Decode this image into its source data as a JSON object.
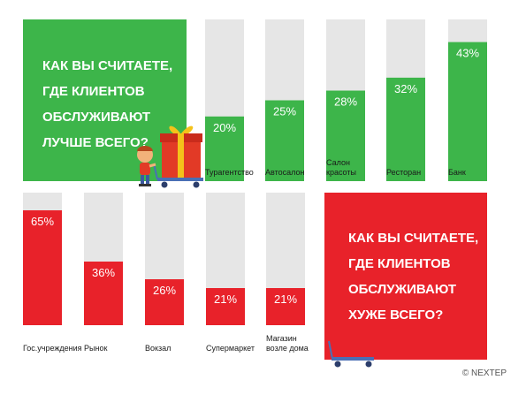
{
  "colors": {
    "best": "#3db54a",
    "worst": "#e8222a",
    "track": "#e6e6e6",
    "label": "#1a1a1a",
    "value_text": "#ffffff"
  },
  "best_panel": {
    "lines": [
      "КАК ВЫ СЧИТАЕТЕ,",
      "ГДЕ КЛИЕНТОВ",
      "ОБСЛУЖИВАЮТ",
      "ЛУЧШЕ ВСЕГО?"
    ]
  },
  "worst_panel": {
    "lines": [
      "КАК ВЫ СЧИТАЕТЕ,",
      "ГДЕ КЛИЕНТОВ",
      "ОБСЛУЖИВАЮТ",
      "ХУЖЕ ВСЕГО?"
    ]
  },
  "copyright": "© NEXTEP",
  "illustrations": {
    "top": "boy-pushing-gift-cart-icon",
    "bottom": "empty-cart-icon"
  },
  "chart_data": [
    {
      "type": "bar",
      "title": "КАК ВЫ СЧИТАЕТЕ, ГДЕ КЛИЕНТОВ ОБСЛУЖИВАЮТ ЛУЧШЕ ВСЕГО?",
      "categories": [
        "Турагентство",
        "Автосалон",
        "Салон красоты",
        "Ресторан",
        "Банк"
      ],
      "category_lines": [
        [
          "Турагентство"
        ],
        [
          "Автосалон"
        ],
        [
          "Салон",
          "красоты"
        ],
        [
          "Ресторан"
        ],
        [
          "Банк"
        ]
      ],
      "values": [
        20,
        25,
        28,
        32,
        43
      ],
      "value_labels": [
        "20%",
        "25%",
        "28%",
        "32%",
        "43%"
      ],
      "unit": "%",
      "ylim": [
        0,
        50
      ],
      "grid": false
    },
    {
      "type": "bar",
      "title": "КАК ВЫ СЧИТАЕТЕ, ГДЕ КЛИЕНТОВ ОБСЛУЖИВАЮТ ХУЖЕ ВСЕГО?",
      "categories": [
        "Гос.учреждения",
        "Рынок",
        "Вокзал",
        "Супермаркет",
        "Магазин возле дома"
      ],
      "category_lines": [
        [
          "Гос.учреждения"
        ],
        [
          "Рынок"
        ],
        [
          "Вокзал"
        ],
        [
          "Супермаркет"
        ],
        [
          "Магазин",
          "возле дома"
        ]
      ],
      "values": [
        65,
        36,
        26,
        21,
        21
      ],
      "value_labels": [
        "65%",
        "36%",
        "26%",
        "21%",
        "21%"
      ],
      "unit": "%",
      "ylim": [
        0,
        75
      ],
      "grid": false
    }
  ]
}
